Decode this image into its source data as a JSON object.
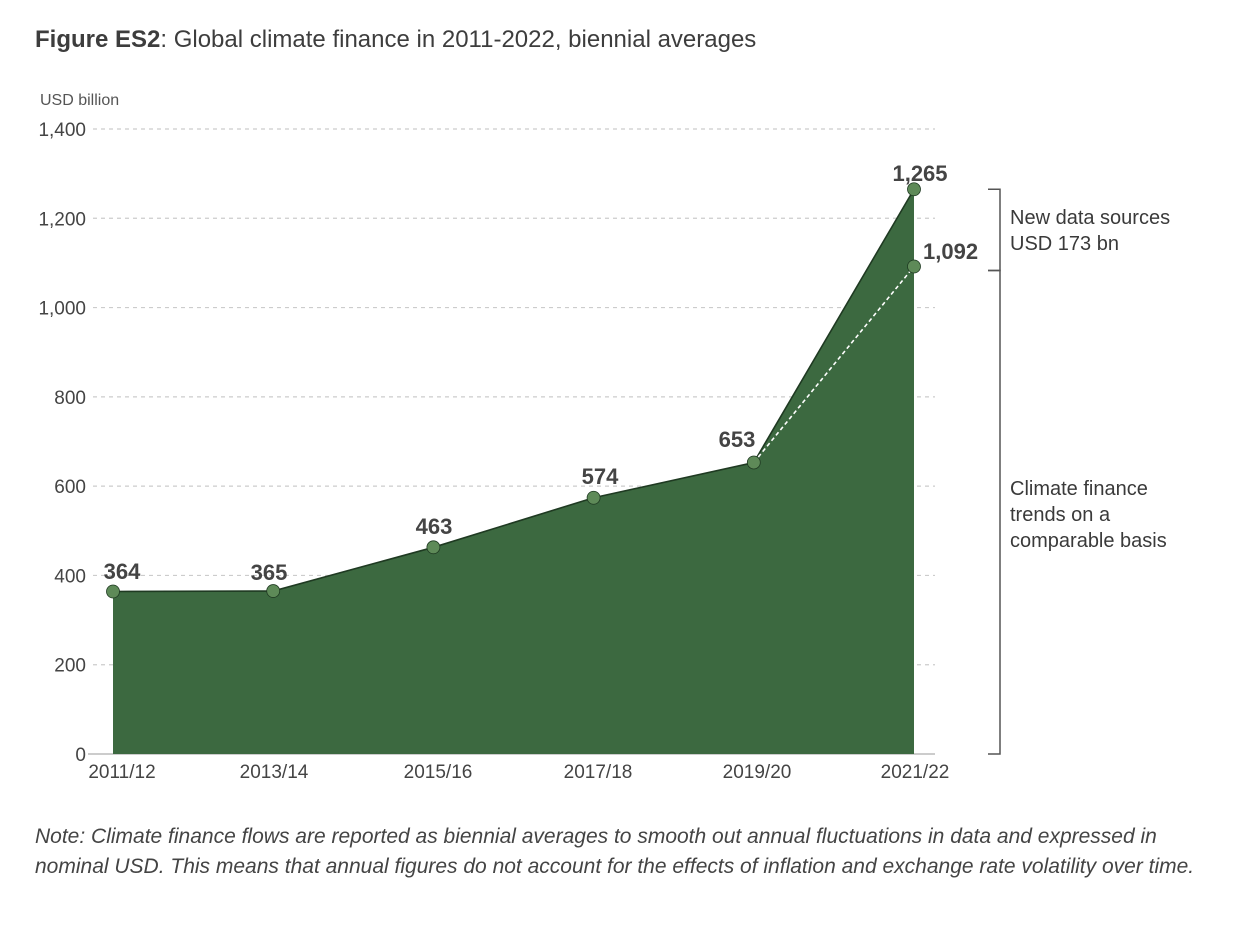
{
  "figure": {
    "label": "Figure ES2",
    "title": ": Global climate finance in 2011-2022, biennial averages"
  },
  "chart_data": {
    "type": "area",
    "title": "Global climate finance in 2011-2022, biennial averages",
    "ylabel": "USD billion",
    "xlabel": "",
    "categories": [
      "2011/12",
      "2013/14",
      "2015/16",
      "2017/18",
      "2019/20",
      "2021/22"
    ],
    "series": [
      {
        "name": "Total global climate finance",
        "values": [
          364,
          365,
          463,
          574,
          653,
          1265
        ],
        "labels": [
          "364",
          "365",
          "463",
          "574",
          "653",
          "1,265"
        ]
      },
      {
        "name": "Comparable basis (excluding new data sources)",
        "values": [
          null,
          null,
          null,
          null,
          653,
          1092
        ],
        "labels": [
          "",
          "",
          "",
          "",
          "",
          "1,092"
        ],
        "style": "dashed"
      }
    ],
    "ylim": [
      0,
      1400
    ],
    "yticks": [
      0,
      200,
      400,
      600,
      800,
      1000,
      1200,
      1400
    ],
    "ytick_labels": [
      "0",
      "200",
      "400",
      "600",
      "800",
      "1,000",
      "1,200",
      "1,400"
    ],
    "grid": true,
    "annotations": [
      {
        "lines": [
          "New data sources",
          "USD 173 bn"
        ],
        "from": 1092,
        "to": 1265
      },
      {
        "lines": [
          "Climate finance",
          "trends on a",
          "comparable basis"
        ],
        "from": 0,
        "to": 1092
      }
    ]
  },
  "colors": {
    "area": "#3c6940",
    "line": "#1f3a22",
    "marker": "#5e8a58",
    "grid": "#cccccc",
    "bracket": "#555555"
  },
  "note": "Note: Climate finance flows are reported as biennial averages to smooth out annual fluctuations in data and expressed in nominal USD. This means that annual figures do not account for the effects of inflation and exchange rate volatility over time."
}
